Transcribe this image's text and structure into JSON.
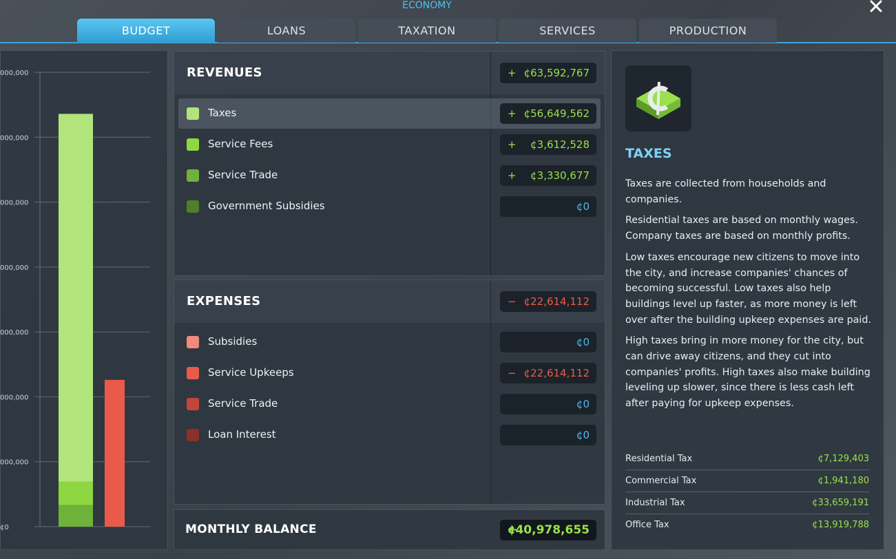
{
  "header": {
    "title": "ECONOMY"
  },
  "tabs": [
    {
      "label": "BUDGET",
      "active": true
    },
    {
      "label": "LOANS"
    },
    {
      "label": "TAXATION"
    },
    {
      "label": "SERVICES"
    },
    {
      "label": "PRODUCTION"
    }
  ],
  "chart": {
    "ylim": [
      0,
      70000000
    ],
    "yticks": [
      {
        "value": 0,
        "label": "¢0"
      },
      {
        "value": 10000000,
        "label": "000,000"
      },
      {
        "value": 20000000,
        "label": "000,000"
      },
      {
        "value": 30000000,
        "label": "000,000"
      },
      {
        "value": 40000000,
        "label": "000,000"
      },
      {
        "value": 50000000,
        "label": "000,000"
      },
      {
        "value": 60000000,
        "label": "000,000"
      },
      {
        "value": 70000000,
        "label": "000,000"
      }
    ]
  },
  "revenues": {
    "title": "REVENUES",
    "total": {
      "sign": "+",
      "label": "¢63,592,767"
    },
    "items": [
      {
        "name": "Taxes",
        "color": "#b1e57c",
        "sign": "+",
        "value": 56649562,
        "label": "¢56,649,562",
        "selected": true
      },
      {
        "name": "Service Fees",
        "color": "#8fd742",
        "sign": "+",
        "value": 3612528,
        "label": "¢3,612,528"
      },
      {
        "name": "Service Trade",
        "color": "#6fb23a",
        "sign": "+",
        "value": 3330677,
        "label": "¢3,330,677"
      },
      {
        "name": "Government Subsidies",
        "color": "#4f7f2b",
        "value": 0,
        "label": "¢0"
      }
    ]
  },
  "expenses": {
    "title": "EXPENSES",
    "total": {
      "sign": "−",
      "label": "¢22,614,112"
    },
    "items": [
      {
        "name": "Subsidies",
        "color": "#f08a7c",
        "value": 0,
        "label": "¢0"
      },
      {
        "name": "Service Upkeeps",
        "color": "#ea5a4a",
        "sign": "−",
        "value": 22614112,
        "label": "¢22,614,112"
      },
      {
        "name": "Service Trade",
        "color": "#c2463a",
        "value": 0,
        "label": "¢0"
      },
      {
        "name": "Loan Interest",
        "color": "#8c3127",
        "value": 0,
        "label": "¢0"
      }
    ]
  },
  "balance": {
    "title": "MONTHLY BALANCE",
    "sign": "+",
    "label": "¢40,978,655"
  },
  "info": {
    "title": "TAXES",
    "paragraphs": [
      "Taxes are collected from households and companies.",
      "Residential taxes are based on monthly wages. Company taxes are based on monthly profits.",
      "Low taxes encourage new citizens to move into the city, and increase companies' chances of becoming successful. Low taxes also help buildings level up faster, as more money is left over after the building upkeep expenses are paid.",
      "High taxes bring in more money for the city, but can drive away citizens, and they cut into companies' profits. High taxes also make building leveling up slower, since there is less cash left after paying for upkeep expenses."
    ],
    "breakdown": [
      {
        "name": "Residential Tax",
        "label": "¢7,129,403"
      },
      {
        "name": "Commercial Tax",
        "label": "¢1,941,180"
      },
      {
        "name": "Industrial Tax",
        "label": "¢33,659,191"
      },
      {
        "name": "Office Tax",
        "label": "¢13,919,788"
      }
    ]
  }
}
